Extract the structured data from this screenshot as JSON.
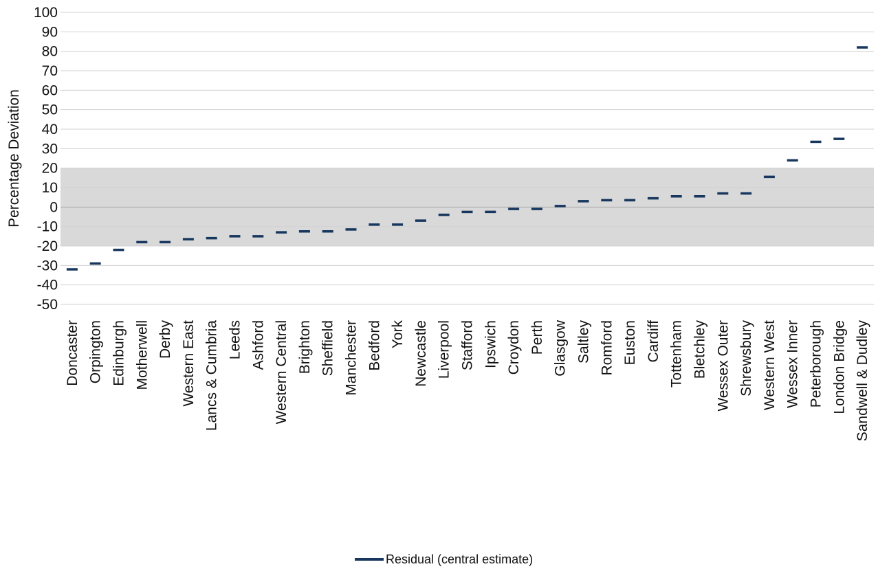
{
  "chart_data": {
    "type": "scatter",
    "marker": "dash",
    "ylabel": "Percentage Deviation",
    "ylim": [
      -50,
      100
    ],
    "y_ticks": [
      100,
      90,
      80,
      70,
      60,
      50,
      40,
      30,
      20,
      10,
      0,
      -10,
      -20,
      -30,
      -40,
      -50
    ],
    "band": [
      -20,
      20
    ],
    "band_color": "#d9d9d9",
    "grid": true,
    "legend_position": "bottom-center",
    "categories": [
      "Doncaster",
      "Orpington",
      "Edinburgh",
      "Motherwell",
      "Derby",
      "Western East",
      "Lancs & Cumbria",
      "Leeds",
      "Ashford",
      "Western Central",
      "Brighton",
      "Sheffield",
      "Manchester",
      "Bedford",
      "York",
      "Newcastle",
      "Liverpool",
      "Stafford",
      "Ipswich",
      "Croydon",
      "Perth",
      "Glasgow",
      "Saltley",
      "Romford",
      "Euston",
      "Cardiff",
      "Tottenham",
      "Bletchley",
      "Wessex Outer",
      "Shrewsbury",
      "Western West",
      "Wessex Inner",
      "Peterborough",
      "London Bridge",
      "Sandwell & Dudley"
    ],
    "series": [
      {
        "name": "Residual (central estimate)",
        "color": "#17375e",
        "values": [
          -32,
          -29,
          -22,
          -18,
          -18,
          -16.5,
          -16,
          -15,
          -15,
          -13,
          -12.5,
          -12.5,
          -11.5,
          -9,
          -9,
          -7,
          -4,
          -2.5,
          -2.5,
          -1,
          -1,
          0.5,
          3,
          3.5,
          3.5,
          4.5,
          5.5,
          5.5,
          7,
          7,
          15.5,
          24,
          33.5,
          35,
          82
        ]
      }
    ]
  }
}
